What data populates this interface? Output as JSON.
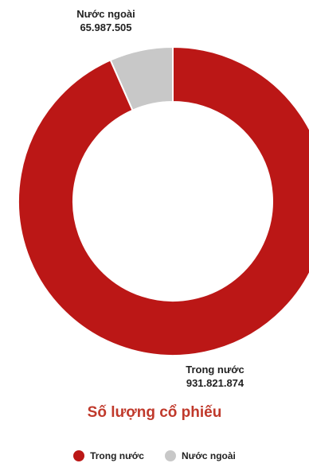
{
  "chart_data": {
    "type": "pie",
    "title": "Số lượng cổ phiếu",
    "donut": true,
    "start_angle_note": "clockwise from top",
    "series": [
      {
        "name": "Trong nước",
        "value": 931821874,
        "value_label": "931.821.874",
        "color": "#bb1716"
      },
      {
        "name": "Nước ngoài",
        "value": 65987505,
        "value_label": "65.987.505",
        "color": "#c8c8c8"
      }
    ],
    "legend_position": "bottom-center"
  }
}
